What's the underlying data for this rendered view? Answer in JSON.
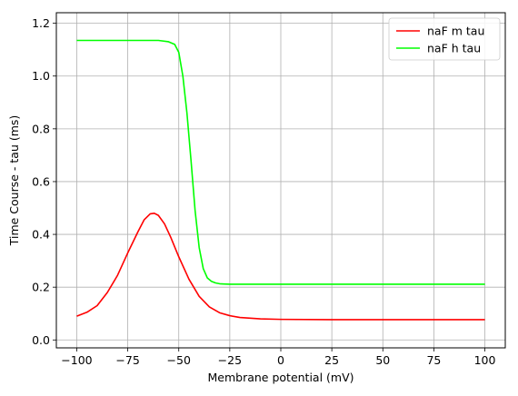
{
  "chart_data": {
    "type": "line",
    "title": "",
    "xlabel": "Membrane potential (mV)",
    "ylabel": "Time Course - tau (ms)",
    "xlim": [
      -110,
      110
    ],
    "ylim": [
      -0.03,
      1.24
    ],
    "xticks": [
      -100,
      -75,
      -50,
      -25,
      0,
      25,
      50,
      75,
      100
    ],
    "xtick_labels": [
      "−100",
      "−75",
      "−50",
      "−25",
      "0",
      "25",
      "50",
      "75",
      "100"
    ],
    "yticks": [
      0.0,
      0.2,
      0.4,
      0.6,
      0.8,
      1.0,
      1.2
    ],
    "ytick_labels": [
      "0.0",
      "0.2",
      "0.4",
      "0.6",
      "0.8",
      "1.0",
      "1.2"
    ],
    "grid": true,
    "legend_position": "top-right",
    "series": [
      {
        "name": "naF m tau",
        "color": "#ff0000",
        "x": [
          -100,
          -95,
          -90,
          -85,
          -80,
          -75,
          -70,
          -67,
          -64,
          -62,
          -60,
          -57,
          -54,
          -50,
          -45,
          -40,
          -35,
          -30,
          -25,
          -20,
          -10,
          0,
          25,
          50,
          75,
          100
        ],
        "y": [
          0.09,
          0.105,
          0.13,
          0.18,
          0.245,
          0.33,
          0.41,
          0.455,
          0.478,
          0.48,
          0.472,
          0.44,
          0.39,
          0.315,
          0.23,
          0.165,
          0.125,
          0.103,
          0.092,
          0.085,
          0.08,
          0.078,
          0.077,
          0.077,
          0.077,
          0.077
        ]
      },
      {
        "name": "naF h tau",
        "color": "#00ff00",
        "x": [
          -100,
          -75,
          -60,
          -55,
          -52,
          -50,
          -48,
          -46,
          -44,
          -42,
          -40,
          -38,
          -36,
          -34,
          -32,
          -30,
          -28,
          -25,
          -20,
          0,
          50,
          100
        ],
        "y": [
          1.135,
          1.135,
          1.135,
          1.13,
          1.12,
          1.09,
          1.0,
          0.86,
          0.68,
          0.49,
          0.35,
          0.27,
          0.235,
          0.222,
          0.216,
          0.213,
          0.212,
          0.211,
          0.211,
          0.211,
          0.211,
          0.211
        ]
      }
    ]
  }
}
